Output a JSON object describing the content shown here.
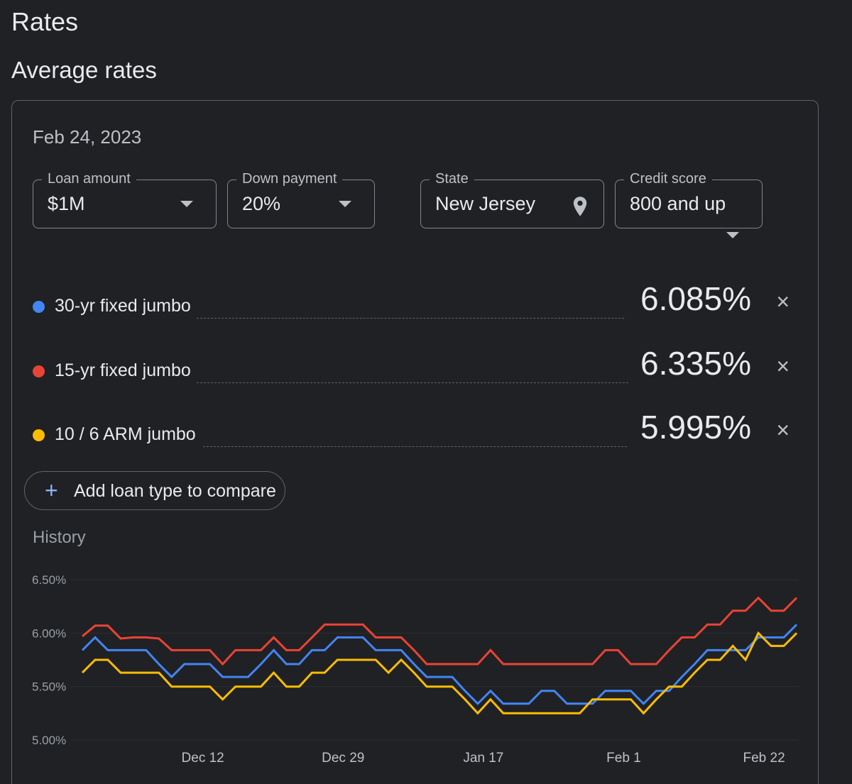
{
  "page": {
    "title": "Rates",
    "section_title": "Average rates"
  },
  "card": {
    "date": "Feb 24, 2023",
    "filters": {
      "loan_amount": {
        "label": "Loan amount",
        "value": "$1M",
        "icon": "dropdown-caret"
      },
      "down_payment": {
        "label": "Down payment",
        "value": "20%",
        "icon": "dropdown-caret"
      },
      "state": {
        "label": "State",
        "value": "New Jersey",
        "icon": "location-pin"
      },
      "credit_score": {
        "label": "Credit score",
        "value": "800 and up",
        "icon": "dropdown-caret"
      }
    },
    "rates": [
      {
        "label": "30-yr fixed jumbo",
        "value": "6.085%",
        "color": "#4285f4"
      },
      {
        "label": "15-yr fixed jumbo",
        "value": "6.335%",
        "color": "#ea4335"
      },
      {
        "label": "10 / 6 ARM jumbo",
        "value": "5.995%",
        "color": "#fbbc04"
      }
    ],
    "add_button": {
      "label": "Add loan type to compare",
      "icon": "plus"
    },
    "history_label": "History"
  },
  "chart_data": {
    "type": "line",
    "title": "History",
    "xlabel": "",
    "ylabel": "",
    "ylim": [
      5.0,
      6.5
    ],
    "yticks": [
      "6.50%",
      "6.00%",
      "5.50%",
      "5.00%"
    ],
    "ytick_values": [
      6.5,
      6.0,
      5.5,
      5.0
    ],
    "xticks": [
      {
        "label": "Dec 12",
        "index": 10
      },
      {
        "label": "Dec 29",
        "index": 21
      },
      {
        "label": "Jan 17",
        "index": 32
      },
      {
        "label": "Feb 1",
        "index": 43
      },
      {
        "label": "Feb 22",
        "index": 54
      }
    ],
    "grid": true,
    "series": [
      {
        "name": "15-yr fixed jumbo",
        "color": "#ea4335",
        "values": [
          5.97,
          6.07,
          6.07,
          5.95,
          5.96,
          5.96,
          5.95,
          5.84,
          5.84,
          5.84,
          5.84,
          5.71,
          5.84,
          5.84,
          5.84,
          5.96,
          5.84,
          5.84,
          5.96,
          6.08,
          6.08,
          6.08,
          6.08,
          5.96,
          5.96,
          5.96,
          5.84,
          5.71,
          5.71,
          5.71,
          5.71,
          5.71,
          5.84,
          5.71,
          5.71,
          5.71,
          5.71,
          5.71,
          5.71,
          5.71,
          5.71,
          5.84,
          5.84,
          5.71,
          5.71,
          5.71,
          5.84,
          5.96,
          5.96,
          6.08,
          6.08,
          6.21,
          6.21,
          6.33,
          6.21,
          6.21,
          6.33
        ]
      },
      {
        "name": "30-yr fixed jumbo",
        "color": "#4285f4",
        "values": [
          5.84,
          5.96,
          5.84,
          5.84,
          5.84,
          5.84,
          5.71,
          5.59,
          5.71,
          5.71,
          5.71,
          5.59,
          5.59,
          5.59,
          5.71,
          5.84,
          5.71,
          5.71,
          5.84,
          5.84,
          5.96,
          5.96,
          5.96,
          5.84,
          5.84,
          5.84,
          5.71,
          5.59,
          5.59,
          5.59,
          5.46,
          5.34,
          5.46,
          5.34,
          5.34,
          5.34,
          5.46,
          5.46,
          5.34,
          5.34,
          5.34,
          5.46,
          5.46,
          5.46,
          5.34,
          5.46,
          5.46,
          5.59,
          5.71,
          5.84,
          5.84,
          5.84,
          5.84,
          5.96,
          5.96,
          5.96,
          6.08
        ]
      },
      {
        "name": "10 / 6 ARM jumbo",
        "color": "#fbbc04",
        "values": [
          5.63,
          5.75,
          5.75,
          5.63,
          5.63,
          5.63,
          5.63,
          5.5,
          5.5,
          5.5,
          5.5,
          5.38,
          5.5,
          5.5,
          5.5,
          5.63,
          5.5,
          5.5,
          5.63,
          5.63,
          5.75,
          5.75,
          5.75,
          5.75,
          5.63,
          5.75,
          5.63,
          5.5,
          5.5,
          5.5,
          5.38,
          5.25,
          5.38,
          5.25,
          5.25,
          5.25,
          5.25,
          5.25,
          5.25,
          5.25,
          5.38,
          5.38,
          5.38,
          5.38,
          5.25,
          5.38,
          5.5,
          5.5,
          5.63,
          5.75,
          5.75,
          5.88,
          5.75,
          6.0,
          5.88,
          5.88,
          6.0
        ]
      }
    ]
  }
}
